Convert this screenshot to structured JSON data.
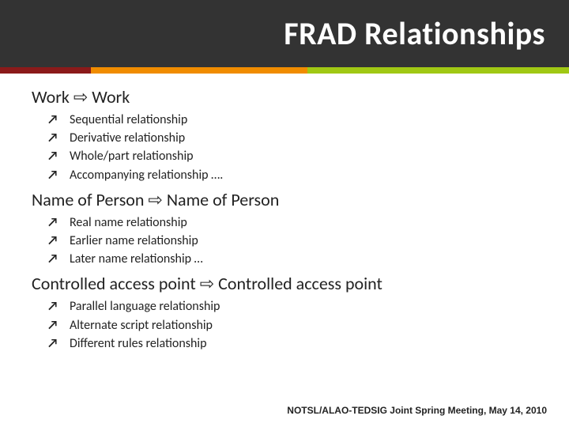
{
  "title": "FRAD Relationships",
  "color_bar": [
    {
      "color": "#8b1a1a",
      "width_pct": 16
    },
    {
      "color": "#f08c00",
      "width_pct": 38
    },
    {
      "color": "#a0c814",
      "width_pct": 46
    }
  ],
  "header_bg": "#333333",
  "title_color": "#ffffff",
  "title_fontsize": 40,
  "body_bg": "#ffffff",
  "sections": [
    {
      "heading": "Work ⇨ Work",
      "items": [
        "Sequential relationship",
        "Derivative relationship",
        "Whole/part relationship",
        "Accompanying relationship  …."
      ]
    },
    {
      "heading": "Name of Person ⇨ Name of Person",
      "items": [
        "Real name relationship",
        "Earlier name relationship",
        "Later name relationship  …"
      ]
    },
    {
      "heading": "Controlled access point ⇨ Controlled access point",
      "items": [
        "Parallel language relationship",
        "Alternate script relationship",
        "Different rules relationship"
      ]
    }
  ],
  "footer": "NOTSL/ALAO-TEDSIG Joint Spring Meeting, May 14, 2010",
  "heading_fontsize": 22,
  "item_fontsize": 16,
  "bullet_glyph": "↗"
}
